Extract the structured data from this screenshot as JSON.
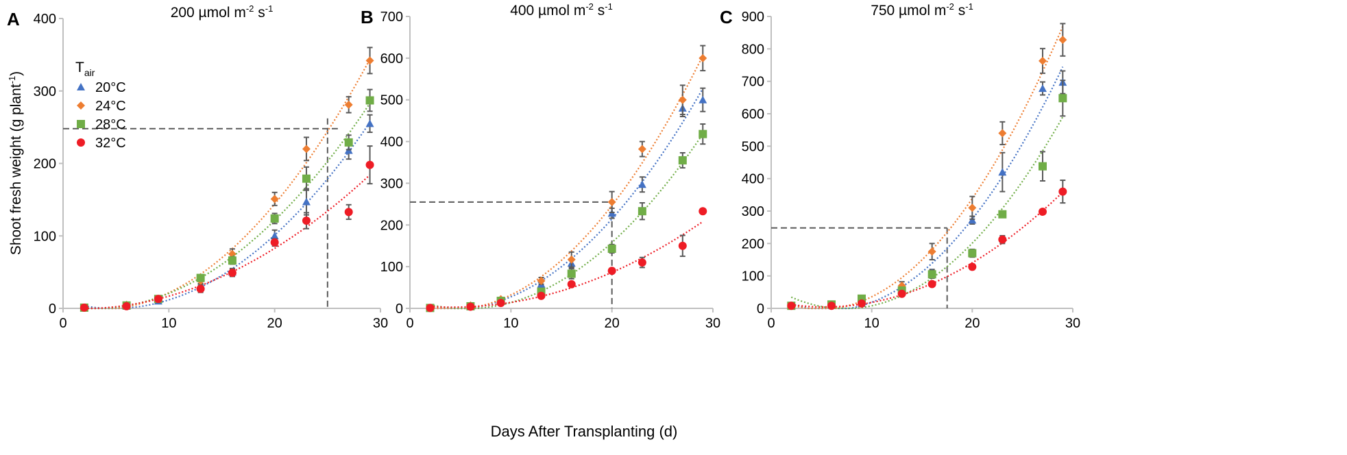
{
  "chart_data": {
    "type": "scatter",
    "xlabel": "Days After Transplanting (d)",
    "ylabel": "Shoot fresh weight (g plant",
    "ylabel_sup": "-1",
    "ylabel_end": ")",
    "legend": {
      "title": "T",
      "title_sub": "air",
      "placement": "top-left (panel A)"
    },
    "x": [
      2,
      6,
      9,
      13,
      16,
      20,
      23,
      27,
      29
    ],
    "series_meta": [
      {
        "name": "20°C",
        "color": "#4472c4",
        "marker": "triangle"
      },
      {
        "name": "24°C",
        "color": "#ed7d31",
        "marker": "diamond"
      },
      {
        "name": "28°C",
        "color": "#70ad47",
        "marker": "square"
      },
      {
        "name": "32°C",
        "color": "#ee1c25",
        "marker": "circle"
      }
    ],
    "trendline": "dotted polynomial fit",
    "panels": [
      {
        "letter": "A",
        "title": "200 µmol m",
        "title_sup1": "-2",
        "title_mid": " s",
        "title_sup2": "-1",
        "xlim": [
          0,
          30
        ],
        "xticks": [
          "0",
          "10",
          "20",
          "30"
        ],
        "ylim": [
          0,
          400
        ],
        "yticks": [
          "0",
          "100",
          "200",
          "300",
          "400"
        ],
        "reference": {
          "y": 248,
          "x": 25
        },
        "series": [
          {
            "name": "20°C",
            "values": [
              1,
              3,
              10,
              30,
              50,
              100,
              147,
              218,
              255
            ],
            "err": [
              1,
              1,
              2,
              4,
              5,
              8,
              18,
              12,
              12
            ]
          },
          {
            "name": "24°C",
            "values": [
              1,
              5,
              13,
              38,
              75,
              151,
              220,
              281,
              342
            ],
            "err": [
              1,
              1,
              2,
              4,
              7,
              9,
              16,
              11,
              18
            ]
          },
          {
            "name": "28°C",
            "values": [
              1,
              4,
              13,
              42,
              66,
              124,
              179,
              229,
              287
            ],
            "err": [
              1,
              1,
              2,
              3,
              5,
              7,
              16,
              10,
              15
            ]
          },
          {
            "name": "32°C",
            "values": [
              1,
              3,
              13,
              27,
              49,
              91,
              121,
              133,
              198
            ],
            "err": [
              1,
              1,
              2,
              5,
              5,
              5,
              11,
              10,
              26
            ]
          }
        ]
      },
      {
        "letter": "B",
        "title": "400 µmol m",
        "title_sup1": "-2",
        "title_mid": " s",
        "title_sup2": "-1",
        "xlim": [
          0,
          30
        ],
        "xticks": [
          "0",
          "10",
          "20",
          "30"
        ],
        "ylim": [
          0,
          700
        ],
        "yticks": [
          "0",
          "100",
          "200",
          "300",
          "400",
          "500",
          "600",
          "700"
        ],
        "reference": {
          "y": 255,
          "x": 20
        },
        "series": [
          {
            "name": "20°C",
            "values": [
              1,
              5,
              18,
              58,
              108,
              228,
              297,
              480,
              500
            ],
            "err": [
              1,
              2,
              3,
              8,
              10,
              12,
              18,
              20,
              28
            ]
          },
          {
            "name": "24°C",
            "values": [
              1,
              7,
              22,
              66,
              117,
              255,
              382,
              500,
              600
            ],
            "err": [
              1,
              2,
              3,
              8,
              18,
              25,
              18,
              35,
              30
            ]
          },
          {
            "name": "28°C",
            "values": [
              1,
              5,
              18,
              40,
              83,
              143,
              233,
              355,
              418
            ],
            "err": [
              1,
              2,
              3,
              6,
              12,
              10,
              20,
              18,
              24
            ]
          },
          {
            "name": "32°C",
            "values": [
              1,
              4,
              13,
              30,
              58,
              90,
              110,
              150,
              233
            ],
            "err": [
              1,
              1,
              2,
              4,
              5,
              6,
              12,
              25,
              6
            ]
          }
        ]
      },
      {
        "letter": "C",
        "title": "750 µmol m",
        "title_sup1": "-2",
        "title_mid": " s",
        "title_sup2": "-1",
        "xlim": [
          0,
          30
        ],
        "xticks": [
          "0",
          "10",
          "20",
          "30"
        ],
        "ylim": [
          0,
          900
        ],
        "yticks": [
          "0",
          "100",
          "200",
          "300",
          "400",
          "500",
          "600",
          "700",
          "800",
          "900"
        ],
        "reference": {
          "y": 248,
          "x": 17.5
        },
        "series": [
          {
            "name": "20°C",
            "values": [
              8,
              10,
              15,
              60,
              110,
              272,
              420,
              678,
              697
            ],
            "err": [
              2,
              2,
              3,
              8,
              10,
              12,
              60,
              20,
              35
            ]
          },
          {
            "name": "24°C",
            "values": [
              8,
              12,
              28,
              70,
              175,
              310,
              540,
              763,
              828
            ],
            "err": [
              2,
              2,
              4,
              12,
              25,
              35,
              35,
              38,
              50
            ]
          },
          {
            "name": "28°C",
            "values": [
              8,
              12,
              30,
              55,
              105,
              170,
              290,
              438,
              648
            ],
            "err": [
              2,
              2,
              4,
              8,
              12,
              12,
              8,
              45,
              55
            ]
          },
          {
            "name": "32°C",
            "values": [
              8,
              8,
              15,
              45,
              75,
              128,
              212,
              298,
              360
            ],
            "err": [
              2,
              2,
              3,
              5,
              6,
              8,
              12,
              5,
              35
            ]
          }
        ]
      }
    ]
  }
}
